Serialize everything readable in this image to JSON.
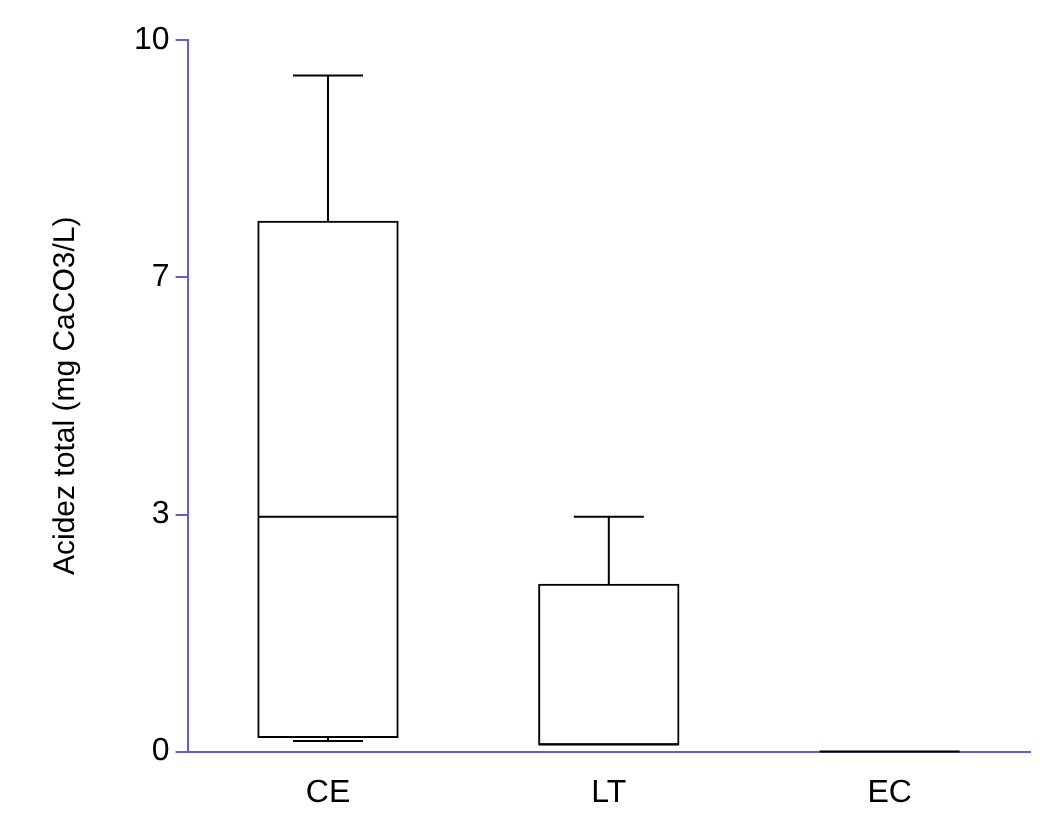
{
  "chart_data": {
    "type": "box",
    "ylabel": "Acidez total (mg CaCO3/L)",
    "categories": [
      "CE",
      "LT",
      "EC"
    ],
    "boxes": [
      {
        "low": 0.15,
        "q1": 0.2,
        "median": 3.3,
        "q3": 7.45,
        "high": 9.5
      },
      {
        "low": 0.1,
        "q1": 0.1,
        "median": 0.1,
        "q3": 2.35,
        "high": 3.3
      },
      {
        "low": 0,
        "q1": 0,
        "median": 0,
        "q3": 0,
        "high": 0
      }
    ],
    "ylim": [
      0,
      10
    ],
    "yticks": [
      0,
      {
        "value": 3.33,
        "label": "3"
      },
      {
        "value": 6.67,
        "label": "7"
      },
      10
    ],
    "grid": false,
    "legend": false
  }
}
